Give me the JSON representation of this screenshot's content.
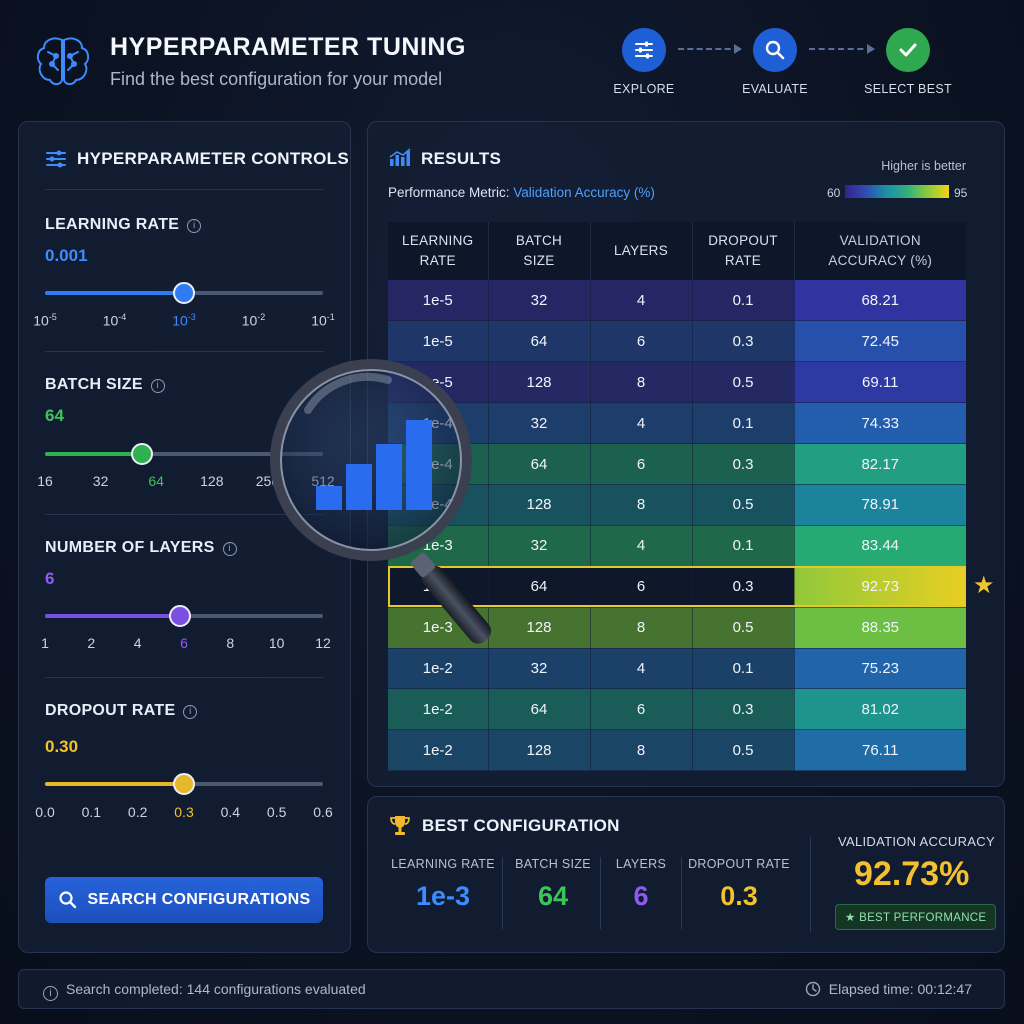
{
  "header": {
    "title": "HYPERPARAMETER TUNING",
    "subtitle": "Find the best configuration for your model",
    "steps": [
      {
        "label": "EXPLORE",
        "icon": "sliders-icon",
        "color": "#1f5fd6"
      },
      {
        "label": "EVALUATE",
        "icon": "search-icon",
        "color": "#1f5fd6"
      },
      {
        "label": "SELECT BEST",
        "icon": "check-icon",
        "color": "#2fa84f"
      }
    ]
  },
  "controls": {
    "title": "HYPERPARAMETER CONTROLS",
    "learning_rate": {
      "label": "LEARNING RATE",
      "value": "0.001",
      "color": "#3b8cff",
      "ticks": [
        "10",
        "10",
        "10",
        "10",
        "10"
      ],
      "exponents": [
        "-5",
        "-4",
        "-3",
        "-2",
        "-1"
      ],
      "selected_index": 2
    },
    "batch_size": {
      "label": "BATCH SIZE",
      "value": "64",
      "color": "#3ec55a",
      "ticks": [
        "16",
        "32",
        "64",
        "128",
        "256",
        "512"
      ],
      "selected_index": 2
    },
    "layers": {
      "label": "NUMBER OF LAYERS",
      "value": "6",
      "color": "#8c5cf0",
      "ticks": [
        "1",
        "2",
        "4",
        "6",
        "8",
        "10",
        "12"
      ],
      "selected_index": 3
    },
    "dropout": {
      "label": "DROPOUT RATE",
      "value": "0.30",
      "color": "#f2c12e",
      "ticks": [
        "0.0",
        "0.1",
        "0.2",
        "0.3",
        "0.4",
        "0.5",
        "0.6"
      ],
      "selected_index": 3
    },
    "search_button": "SEARCH CONFIGURATIONS"
  },
  "results": {
    "title": "RESULTS",
    "higher_is_better": "Higher is better",
    "metric_prefix": "Performance Metric: ",
    "metric_name": "Validation Accuracy (%)",
    "scale_min": "60",
    "scale_max": "95",
    "columns": [
      [
        "LEARNING",
        "RATE"
      ],
      [
        "BATCH",
        "SIZE"
      ],
      [
        "LAYERS",
        ""
      ],
      [
        "DROPOUT",
        "RATE"
      ],
      [
        "VALIDATION",
        "ACCURACY (%)"
      ]
    ],
    "rows": [
      [
        "1e-5",
        "32",
        "4",
        "0.1",
        "68.21"
      ],
      [
        "1e-5",
        "64",
        "6",
        "0.3",
        "72.45"
      ],
      [
        "1e-5",
        "128",
        "8",
        "0.5",
        "69.11"
      ],
      [
        "1e-4",
        "32",
        "4",
        "0.1",
        "74.33"
      ],
      [
        "1e-4",
        "64",
        "6",
        "0.3",
        "82.17"
      ],
      [
        "1e-4",
        "128",
        "8",
        "0.5",
        "78.91"
      ],
      [
        "1e-3",
        "32",
        "4",
        "0.1",
        "83.44"
      ],
      [
        "1e-3",
        "64",
        "6",
        "0.3",
        "92.73"
      ],
      [
        "1e-3",
        "128",
        "8",
        "0.5",
        "88.35"
      ],
      [
        "1e-2",
        "32",
        "4",
        "0.1",
        "75.23"
      ],
      [
        "1e-2",
        "64",
        "6",
        "0.3",
        "81.02"
      ],
      [
        "1e-2",
        "128",
        "8",
        "0.5",
        "76.11"
      ]
    ],
    "best_row_index": 7
  },
  "best_config": {
    "title": "BEST CONFIGURATION",
    "items": [
      {
        "label": "LEARNING RATE",
        "value": "1e-3",
        "color": "#3b8cff"
      },
      {
        "label": "BATCH SIZE",
        "value": "64",
        "color": "#3ec55a"
      },
      {
        "label": "LAYERS",
        "value": "6",
        "color": "#8c5cf0"
      },
      {
        "label": "DROPOUT RATE",
        "value": "0.3",
        "color": "#f2c12e"
      }
    ],
    "accuracy_label": "VALIDATION ACCURACY",
    "accuracy_value": "92.73%",
    "badge": "BEST PERFORMANCE"
  },
  "status": {
    "message": "Search completed: 144 configurations evaluated",
    "elapsed": "Elapsed time: 00:12:47"
  }
}
